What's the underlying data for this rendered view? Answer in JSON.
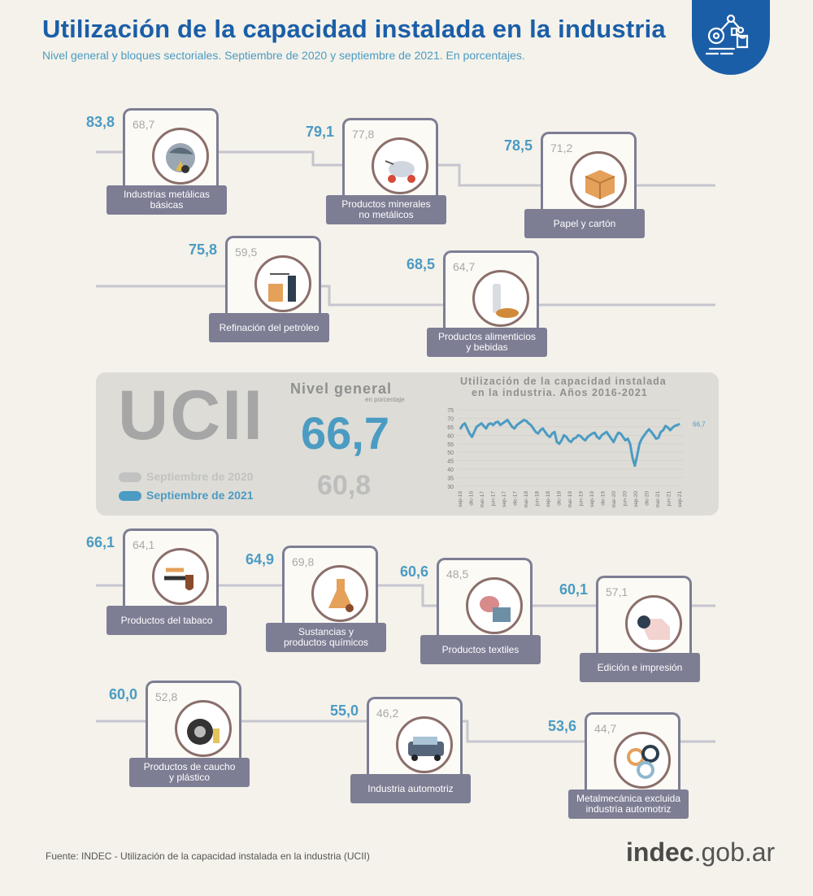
{
  "header": {
    "title": "Utilización de la capacidad instalada en la industria",
    "subtitle": "Nivel general y bloques sectoriales. Septiembre de 2020 y septiembre de 2021. En porcentajes."
  },
  "sectors": [
    {
      "label_lines": [
        "Industrias metálicas",
        "básicas"
      ],
      "v2020": "68,7",
      "v2021": "83,8",
      "icon": "metal-ladle-icon"
    },
    {
      "label_lines": [
        "Productos minerales",
        "no metálicos"
      ],
      "v2020": "77,8",
      "v2021": "79,1",
      "icon": "cement-mixer-icon"
    },
    {
      "label_lines": [
        "Papel y cartón"
      ],
      "v2020": "71,2",
      "v2021": "78,5",
      "icon": "cardboard-box-icon"
    },
    {
      "label_lines": [
        "Refinación del petróleo"
      ],
      "v2020": "59,5",
      "v2021": "75,8",
      "icon": "refinery-icon"
    },
    {
      "label_lines": [
        "Productos alimenticios",
        "y bebidas"
      ],
      "v2020": "64,7",
      "v2021": "68,5",
      "icon": "bottle-bread-icon"
    },
    {
      "label_lines": [
        "Productos del tabaco"
      ],
      "v2020": "64,1",
      "v2021": "66,1",
      "icon": "pipe-icon"
    },
    {
      "label_lines": [
        "Sustancias y",
        "productos químicos"
      ],
      "v2020": "69,8",
      "v2021": "64,9",
      "icon": "flask-icon"
    },
    {
      "label_lines": [
        "Productos textiles"
      ],
      "v2020": "48,5",
      "v2021": "60,6",
      "icon": "textile-icon"
    },
    {
      "label_lines": [
        "Edición e impresión"
      ],
      "v2020": "57,1",
      "v2021": "60,1",
      "icon": "paper-roll-icon"
    },
    {
      "label_lines": [
        "Productos de caucho",
        "y plástico"
      ],
      "v2020": "52,8",
      "v2021": "60,0",
      "icon": "tires-icon"
    },
    {
      "label_lines": [
        "Industria automotriz"
      ],
      "v2020": "46,2",
      "v2021": "55,0",
      "icon": "truck-icon"
    },
    {
      "label_lines": [
        "Metalmecánica excluida",
        "industria automotriz"
      ],
      "v2020": "44,7",
      "v2021": "53,6",
      "icon": "gears-icon"
    }
  ],
  "general": {
    "acronym": "UCII",
    "label": "Nivel general",
    "sublabel": "en porcentaje",
    "value_2021": "66,7",
    "value_2020": "60,8",
    "legend_2020": "Septiembre de 2020",
    "legend_2021": "Septiembre de 2021"
  },
  "chart_data": {
    "type": "line",
    "title_lines": [
      "Utilización de la capacidad instalada",
      "en la industria. Años 2016-2021"
    ],
    "ylim": [
      30,
      75
    ],
    "yticks": [
      30,
      35,
      40,
      45,
      50,
      55,
      60,
      65,
      70,
      75
    ],
    "xticks": [
      "sep-16",
      "dic-16",
      "mar-17",
      "jun-17",
      "sep-17",
      "dic-17",
      "mar-18",
      "jun-18",
      "sep-18",
      "dic-18",
      "mar-19",
      "jun-19",
      "sep-19",
      "dic-19",
      "mar-20",
      "jun-20",
      "sep-20",
      "dic-20",
      "mar-21",
      "jun-21",
      "sep-21"
    ],
    "end_label": "66,7",
    "series": [
      {
        "values": [
          63.5,
          66,
          67,
          64,
          61,
          59,
          62,
          65,
          66,
          67,
          65.5,
          64,
          66.5,
          67,
          66,
          67.5,
          68,
          66,
          67,
          68,
          69,
          67,
          65,
          64,
          66,
          67,
          68,
          69,
          68.5,
          67,
          66,
          64,
          62,
          61,
          63,
          64,
          62,
          60,
          59,
          61,
          62,
          56,
          55,
          57,
          60,
          59,
          57,
          56,
          58,
          58.5,
          60,
          59.5,
          58,
          57,
          59,
          60,
          61,
          61.5,
          59,
          58,
          60,
          61,
          62,
          60,
          58,
          56,
          59,
          61.5,
          61,
          59,
          57,
          58,
          55,
          47,
          42,
          48,
          55,
          58,
          60,
          62,
          63.5,
          62,
          60,
          58,
          58.5,
          62,
          63,
          65.5,
          64.5,
          63,
          64.5,
          65.5,
          66,
          66.7
        ],
        "color": "#4b9bc3"
      }
    ]
  }
}
